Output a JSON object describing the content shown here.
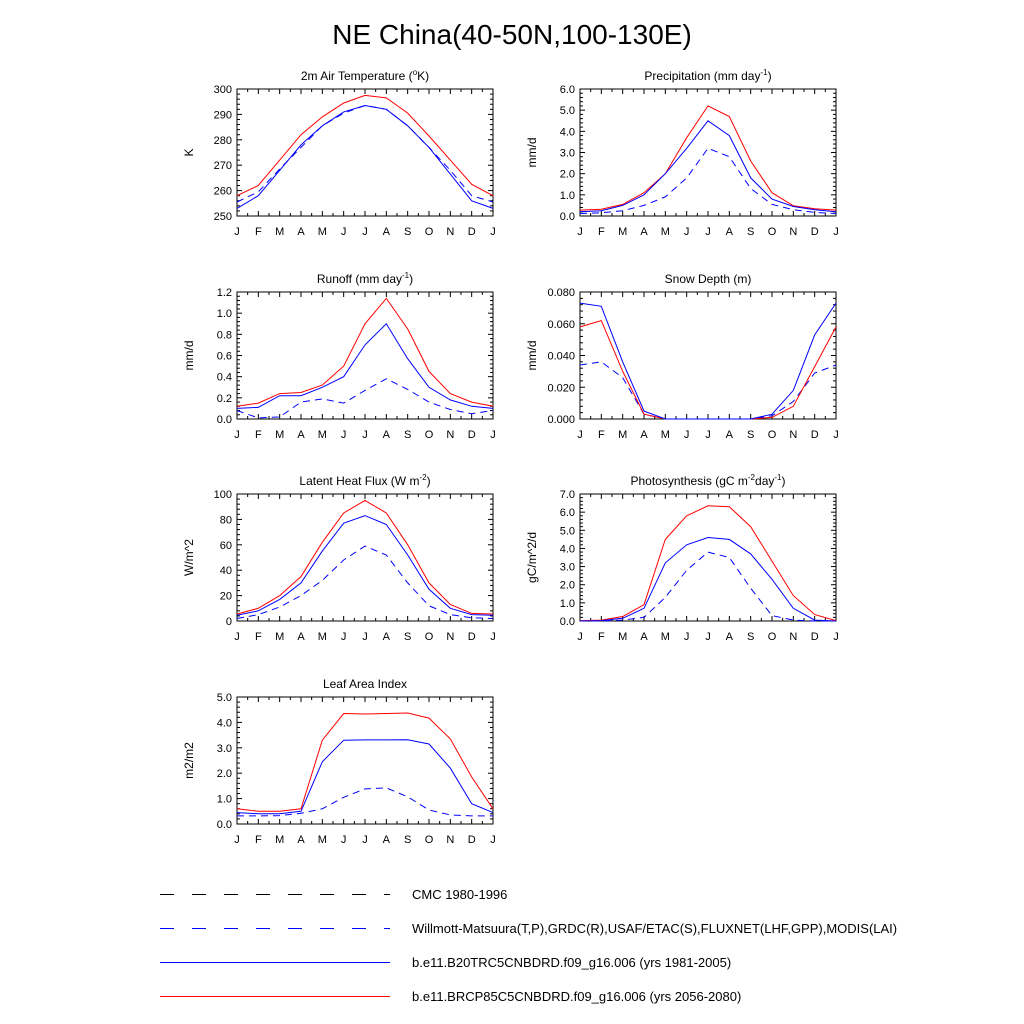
{
  "title": "NE China(40-50N,100-130E)",
  "colors": {
    "cmc": "#000000",
    "obs": "#0000ff",
    "b20tr": "#0000ff",
    "rcp85": "#ff0000"
  },
  "months": [
    "J",
    "F",
    "M",
    "A",
    "M",
    "J",
    "J",
    "A",
    "S",
    "O",
    "N",
    "D",
    "J"
  ],
  "legend": [
    {
      "label": "CMC 1980-1996",
      "color": "#000000",
      "style": "dashed"
    },
    {
      "label": "Willmott-Matsuura(T,P),GRDC(R),USAF/ETAC(S),FLUXNET(LHF,GPP),MODIS(LAI)",
      "color": "#0000ff",
      "style": "dashed"
    },
    {
      "label": "b.e11.B20TRC5CNBDRD.f09_g16.006 (yrs 1981-2005)",
      "color": "#0000ff",
      "style": "solid"
    },
    {
      "label": "b.e11.BRCP85C5CNBDRD.f09_g16.006 (yrs 2056-2080)",
      "color": "#ff0000",
      "style": "solid"
    }
  ],
  "chart_data": [
    {
      "type": "line",
      "title": "2m Air Temperature",
      "title_parts": [
        "2m Air Temperature (",
        "o",
        "K)"
      ],
      "ylabel": "K",
      "ylim": [
        250,
        300
      ],
      "yticks": [
        "250",
        "260",
        "270",
        "280",
        "290",
        "300"
      ],
      "categories": [
        "J",
        "F",
        "M",
        "A",
        "M",
        "J",
        "J",
        "A",
        "S",
        "O",
        "N",
        "D",
        "J"
      ],
      "series": [
        {
          "name": "b.e11.BRCP85C5CNBDRD.f09_g16.006 (yrs 2056-2080)",
          "values": [
            258,
            262,
            272,
            282,
            289,
            294.5,
            297.5,
            296.5,
            290.5,
            281.5,
            272,
            262.5,
            258
          ]
        },
        {
          "name": "b.e11.B20TRC5CNBDRD.f09_g16.006 (yrs 1981-2005)",
          "values": [
            253,
            258,
            268,
            278,
            285.5,
            291,
            293.5,
            292,
            285.5,
            277,
            266.5,
            256,
            253
          ]
        },
        {
          "name": "Willmott-Matsuura(T,P),GRDC(R),USAF/ETAC(S),FLUXNET(LHF,GPP),MODIS(LAI)",
          "values": [
            255.5,
            259.5,
            268.5,
            277,
            285.5,
            290.5,
            293.5,
            292,
            285.5,
            277,
            268,
            258,
            255.5
          ]
        }
      ]
    },
    {
      "type": "line",
      "title": "Precipitation",
      "title_parts": [
        "Precipitation (mm day",
        "-1",
        ")"
      ],
      "ylabel": "mm/d",
      "ylim": [
        0,
        6
      ],
      "yticks": [
        "0.0",
        "1.0",
        "2.0",
        "3.0",
        "4.0",
        "5.0",
        "6.0"
      ],
      "categories": [
        "J",
        "F",
        "M",
        "A",
        "M",
        "J",
        "J",
        "A",
        "S",
        "O",
        "N",
        "D",
        "J"
      ],
      "series": [
        {
          "name": "b.e11.BRCP85C5CNBDRD.f09_g16.006 (yrs 2056-2080)",
          "values": [
            0.28,
            0.32,
            0.55,
            1.1,
            2.0,
            3.7,
            5.2,
            4.7,
            2.6,
            1.1,
            0.48,
            0.34,
            0.28
          ]
        },
        {
          "name": "b.e11.B20TRC5CNBDRD.f09_g16.006 (yrs 1981-2005)",
          "values": [
            0.2,
            0.25,
            0.5,
            1.0,
            2.0,
            3.2,
            4.5,
            3.8,
            1.8,
            0.8,
            0.45,
            0.3,
            0.2
          ]
        },
        {
          "name": "Willmott-Matsuura(T,P),GRDC(R),USAF/ETAC(S),FLUXNET(LHF,GPP),MODIS(LAI)",
          "values": [
            0.12,
            0.15,
            0.25,
            0.5,
            0.9,
            1.8,
            3.2,
            2.8,
            1.3,
            0.55,
            0.3,
            0.17,
            0.12
          ]
        }
      ]
    },
    {
      "type": "line",
      "title": "Runoff",
      "title_parts": [
        "Runoff (mm day",
        "-1",
        ")"
      ],
      "ylabel": "mm/d",
      "ylim": [
        0,
        1.2
      ],
      "yticks": [
        "0.0",
        "0.2",
        "0.4",
        "0.6",
        "0.8",
        "1.0",
        "1.2"
      ],
      "categories": [
        "J",
        "F",
        "M",
        "A",
        "M",
        "J",
        "J",
        "A",
        "S",
        "O",
        "N",
        "D",
        "J"
      ],
      "series": [
        {
          "name": "b.e11.BRCP85C5CNBDRD.f09_g16.006 (yrs 2056-2080)",
          "values": [
            0.12,
            0.15,
            0.24,
            0.25,
            0.32,
            0.5,
            0.9,
            1.14,
            0.85,
            0.45,
            0.24,
            0.16,
            0.12
          ]
        },
        {
          "name": "b.e11.B20TRC5CNBDRD.f09_g16.006 (yrs 1981-2005)",
          "values": [
            0.1,
            0.11,
            0.22,
            0.22,
            0.3,
            0.4,
            0.7,
            0.9,
            0.57,
            0.3,
            0.18,
            0.12,
            0.1
          ]
        },
        {
          "name": "Willmott-Matsuura(T,P),GRDC(R),USAF/ETAC(S),FLUXNET(LHF,GPP),MODIS(LAI)",
          "values": [
            0.08,
            0.01,
            0.02,
            0.16,
            0.19,
            0.15,
            0.27,
            0.38,
            0.28,
            0.16,
            0.09,
            0.05,
            0.08
          ]
        }
      ]
    },
    {
      "type": "line",
      "title": "Snow Depth",
      "title_parts": [
        "Snow Depth (m)"
      ],
      "ylabel": "mm/d",
      "ylim": [
        0,
        0.08
      ],
      "yticks": [
        "0.000",
        "0.020",
        "0.040",
        "0.060",
        "0.080"
      ],
      "categories": [
        "J",
        "F",
        "M",
        "A",
        "M",
        "J",
        "J",
        "A",
        "S",
        "O",
        "N",
        "D",
        "J"
      ],
      "series": [
        {
          "name": "b.e11.BRCP85C5CNBDRD.f09_g16.006 (yrs 2056-2080)",
          "values": [
            0.058,
            0.062,
            0.03,
            0.003,
            0.0,
            0.0,
            0.0,
            0.0,
            0.0,
            0.001,
            0.008,
            0.033,
            0.058
          ]
        },
        {
          "name": "b.e11.B20TRC5CNBDRD.f09_g16.006 (yrs 1981-2005)",
          "values": [
            0.073,
            0.071,
            0.036,
            0.005,
            0.0,
            0.0,
            0.0,
            0.0,
            0.0,
            0.003,
            0.018,
            0.053,
            0.073
          ]
        },
        {
          "name": "Willmott-Matsuura(T,P),GRDC(R),USAF/ETAC(S),FLUXNET(LHF,GPP),MODIS(LAI)",
          "values": [
            0.034,
            0.036,
            0.026,
            0.003,
            0.0,
            0.0,
            0.0,
            0.0,
            0.0,
            0.002,
            0.011,
            0.029,
            0.034
          ]
        },
        {
          "name": "CMC 1980-1996",
          "values": [
            0,
            0,
            0,
            0,
            0,
            0,
            0,
            0,
            0,
            0,
            0,
            0,
            0
          ]
        }
      ]
    },
    {
      "type": "line",
      "title": "Latent Heat Flux",
      "title_parts": [
        "Latent Heat Flux (W m",
        "-2",
        ")"
      ],
      "ylabel": "W/m^2",
      "ylim": [
        0,
        100
      ],
      "yticks": [
        "0",
        "20",
        "40",
        "60",
        "80",
        "100"
      ],
      "categories": [
        "J",
        "F",
        "M",
        "A",
        "M",
        "J",
        "J",
        "A",
        "S",
        "O",
        "N",
        "D",
        "J"
      ],
      "series": [
        {
          "name": "b.e11.BRCP85C5CNBDRD.f09_g16.006 (yrs 2056-2080)",
          "values": [
            5.5,
            10,
            20,
            35,
            62,
            85,
            95,
            85,
            60,
            30,
            13,
            6,
            5.5
          ]
        },
        {
          "name": "b.e11.B20TRC5CNBDRD.f09_g16.006 (yrs 1981-2005)",
          "values": [
            4.5,
            8,
            17,
            30,
            55,
            77,
            83,
            76,
            52,
            25,
            10,
            5,
            4.5
          ]
        },
        {
          "name": "Willmott-Matsuura(T,P),GRDC(R),USAF/ETAC(S),FLUXNET(LHF,GPP),MODIS(LAI)",
          "values": [
            2,
            5,
            11,
            20,
            32,
            48,
            59,
            52,
            30,
            12,
            5,
            2.5,
            2
          ]
        }
      ]
    },
    {
      "type": "line",
      "title": "Photosynthesis",
      "title_parts": [
        "Photosynthesis (gC m",
        "-2",
        "day",
        "-1",
        ")"
      ],
      "ylabel": "gC/m^2/d",
      "ylim": [
        0,
        7
      ],
      "yticks": [
        "0.0",
        "1.0",
        "2.0",
        "3.0",
        "4.0",
        "5.0",
        "6.0",
        "7.0"
      ],
      "categories": [
        "J",
        "F",
        "M",
        "A",
        "M",
        "J",
        "J",
        "A",
        "S",
        "O",
        "N",
        "D",
        "J"
      ],
      "series": [
        {
          "name": "b.e11.BRCP85C5CNBDRD.f09_g16.006 (yrs 2056-2080)",
          "values": [
            0.02,
            0.05,
            0.25,
            0.9,
            4.5,
            5.8,
            6.35,
            6.3,
            5.2,
            3.3,
            1.4,
            0.35,
            0.02
          ]
        },
        {
          "name": "b.e11.B20TRC5CNBDRD.f09_g16.006 (yrs 1981-2005)",
          "values": [
            0.0,
            0.02,
            0.15,
            0.7,
            3.2,
            4.2,
            4.6,
            4.5,
            3.7,
            2.3,
            0.7,
            0.05,
            0.0
          ]
        },
        {
          "name": "Willmott-Matsuura(T,P),GRDC(R),USAF/ETAC(S),FLUXNET(LHF,GPP),MODIS(LAI)",
          "values": [
            0.0,
            0.0,
            0.05,
            0.2,
            1.3,
            2.8,
            3.8,
            3.5,
            1.8,
            0.3,
            0.05,
            0.0,
            0.0
          ]
        }
      ]
    },
    {
      "type": "line",
      "title": "Leaf Area Index",
      "title_parts": [
        "Leaf Area Index"
      ],
      "ylabel": "m2/m2",
      "ylim": [
        0,
        5
      ],
      "yticks": [
        "0.0",
        "1.0",
        "2.0",
        "3.0",
        "4.0",
        "5.0"
      ],
      "categories": [
        "J",
        "F",
        "M",
        "A",
        "M",
        "J",
        "J",
        "A",
        "S",
        "O",
        "N",
        "D",
        "J"
      ],
      "series": [
        {
          "name": "b.e11.BRCP85C5CNBDRD.f09_g16.006 (yrs 2056-2080)",
          "values": [
            0.6,
            0.5,
            0.5,
            0.6,
            3.3,
            4.35,
            4.33,
            4.35,
            4.37,
            4.17,
            3.35,
            1.85,
            0.6
          ]
        },
        {
          "name": "b.e11.B20TRC5CNBDRD.f09_g16.006 (yrs 1981-2005)",
          "values": [
            0.45,
            0.4,
            0.4,
            0.5,
            2.45,
            3.3,
            3.31,
            3.31,
            3.32,
            3.15,
            2.2,
            0.8,
            0.45
          ]
        },
        {
          "name": "Willmott-Matsuura(T,P),GRDC(R),USAF/ETAC(S),FLUXNET(LHF,GPP),MODIS(LAI)",
          "values": [
            0.32,
            0.32,
            0.33,
            0.42,
            0.6,
            1.05,
            1.38,
            1.42,
            1.07,
            0.55,
            0.36,
            0.32,
            0.32
          ]
        }
      ]
    }
  ]
}
